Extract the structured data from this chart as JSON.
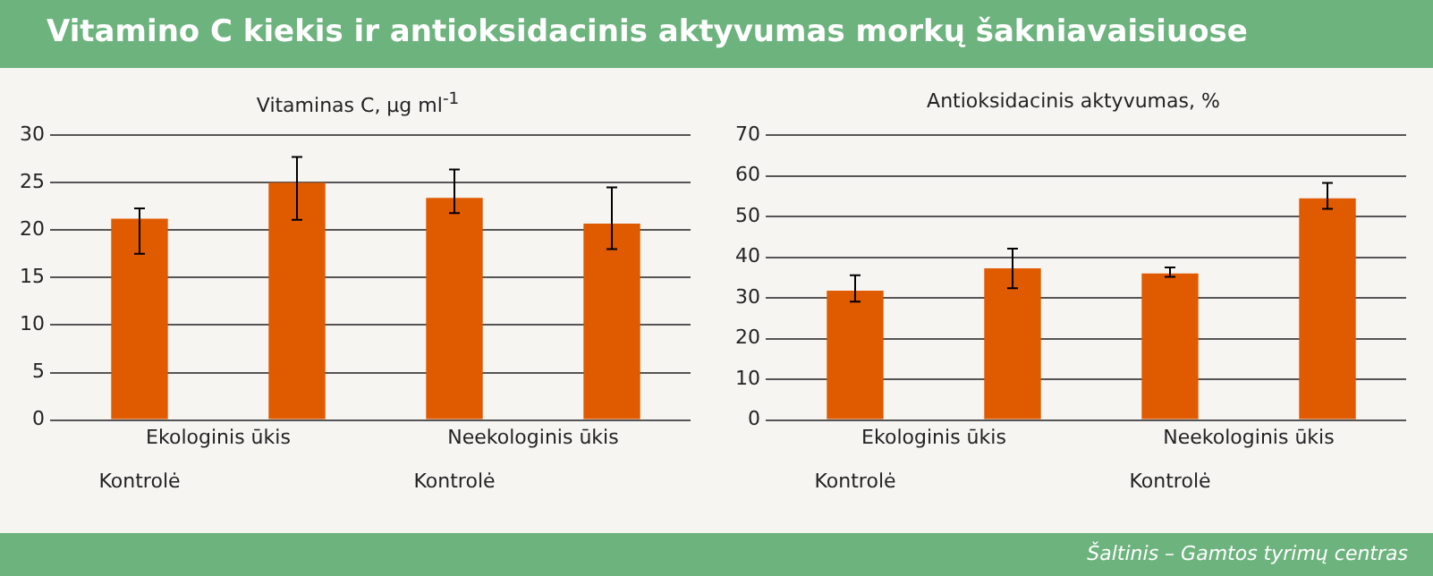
{
  "chart_data": [
    {
      "type": "bar",
      "title": "Vitamino C kiekis ir antioksidacinis aktyvumas morkų šakniavaisiuose",
      "subtitle": "Vitaminas C, µg ml$^{-1}$",
      "categories": [
        "Kontrolė",
        null,
        "Kontrolė",
        null
      ],
      "values": [
        21.2,
        25.0,
        23.4,
        20.7
      ],
      "color": "#e05a00",
      "errors": [
        [
          17.5,
          22.3
        ],
        [
          21.1,
          27.7
        ],
        [
          21.8,
          26.4
        ],
        [
          18.0,
          24.5
        ]
      ],
      "ylim": [
        0,
        30
      ],
      "yticks": [
        0,
        5,
        10,
        15,
        20,
        25,
        30
      ],
      "grid": "y",
      "annotations": [
        "Ekologinis ūkis",
        "Neekologinis ūkis"
      ]
    },
    {
      "type": "bar",
      "subtitle": "Antioksidacinis aktyvumas, %",
      "categories": [
        "Kontrolė",
        null,
        "Kontrolė",
        null
      ],
      "values": [
        31.8,
        37.3,
        36.0,
        54.5
      ],
      "color": "#e05a00",
      "errors": [
        [
          29.1,
          35.6
        ],
        [
          32.4,
          42.1
        ],
        [
          35.2,
          37.5
        ],
        [
          51.9,
          58.3
        ]
      ],
      "ylim": [
        0,
        70
      ],
      "yticks": [
        0,
        10,
        20,
        30,
        40,
        50,
        60,
        70
      ],
      "grid": "y",
      "annotations": [
        "Ekologinis ūkis",
        "Neekologinis ūkis",
        "Šaltinis – Gamtos tyrimų centras"
      ]
    }
  ]
}
